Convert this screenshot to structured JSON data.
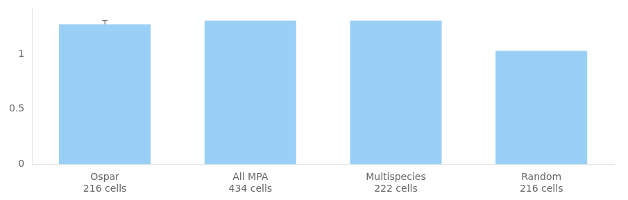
{
  "chart_data": {
    "type": "bar",
    "categories": [
      "Ospar",
      "All MPA",
      "Multispecies",
      "Random"
    ],
    "cell_labels": [
      "216 cells",
      "434 cells",
      "222 cells",
      "216 cells"
    ],
    "values": [
      1.27,
      1.305,
      1.305,
      1.03
    ],
    "errors_up": [
      0.035,
      null,
      null,
      null
    ],
    "ylim": [
      0,
      1.42
    ],
    "yticks": [
      0,
      0.5,
      1
    ],
    "grid": false
  }
}
